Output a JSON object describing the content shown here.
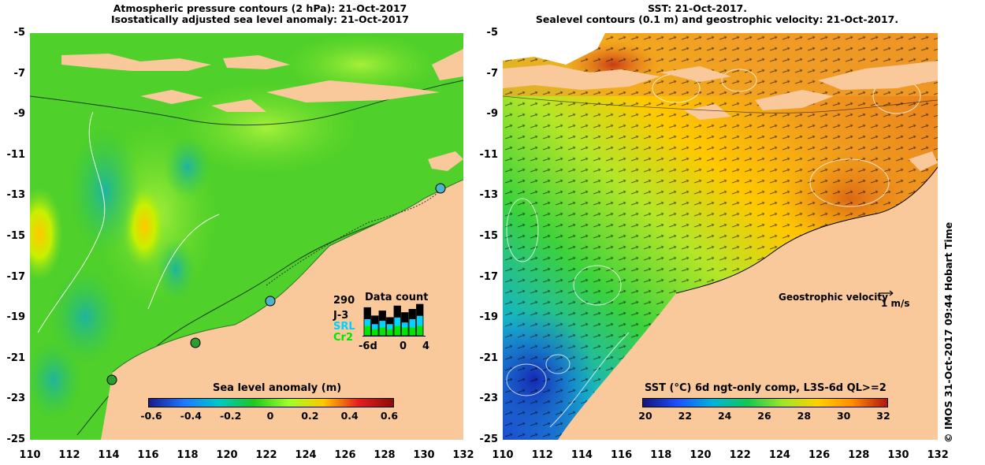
{
  "left_panel": {
    "title_line1": "Atmospheric pressure contours (2 hPa): 21-Oct-2017",
    "title_line2": "Isostatically adjusted sea level anomaly: 21-Oct-2017",
    "colorbar": {
      "title": "Sea level anomaly (m)",
      "ticks": [
        "-0.6",
        "-0.4",
        "-0.2",
        "0",
        "0.2",
        "0.4",
        "0.6"
      ],
      "colors": [
        "#1a1a8c",
        "#1e78ff",
        "#00c8c8",
        "#1ec81e",
        "#a0ff28",
        "#ffc800",
        "#e61e1e",
        "#8c0a0a"
      ]
    },
    "data_count": {
      "title": "Data count",
      "max": "290",
      "series_labels": [
        "J-3",
        "SRL",
        "Cr2"
      ],
      "series_colors": [
        "#000000",
        "#00d2ff",
        "#00e600"
      ],
      "x_ticks": [
        "-6d",
        "0",
        "4"
      ],
      "bars": [
        {
          "total": 0.85,
          "j3": 0.35,
          "srl": 0.2,
          "cr2": 0.3
        },
        {
          "total": 0.6,
          "j3": 0.25,
          "srl": 0.15,
          "cr2": 0.2
        },
        {
          "total": 0.75,
          "j3": 0.3,
          "srl": 0.2,
          "cr2": 0.25
        },
        {
          "total": 0.55,
          "j3": 0.2,
          "srl": 0.15,
          "cr2": 0.2
        },
        {
          "total": 0.9,
          "j3": 0.35,
          "srl": 0.25,
          "cr2": 0.3
        },
        {
          "total": 0.7,
          "j3": 0.3,
          "srl": 0.15,
          "cr2": 0.25
        },
        {
          "total": 0.8,
          "j3": 0.3,
          "srl": 0.25,
          "cr2": 0.25
        },
        {
          "total": 0.95,
          "j3": 0.35,
          "srl": 0.3,
          "cr2": 0.3
        }
      ]
    }
  },
  "right_panel": {
    "title_line1": "SST: 21-Oct-2017.",
    "title_line2": "Sealevel contours (0.1 m) and geostrophic velocity: 21-Oct-2017.",
    "velocity_label": "Geostrophic velocity",
    "velocity_scale": "1 m/s",
    "colorbar": {
      "title": "SST (°C) 6d ngt-only comp, L3S-6d QL>=2",
      "ticks": [
        "20",
        "22",
        "24",
        "26",
        "28",
        "30",
        "32"
      ],
      "colors": [
        "#14147a",
        "#1e50ff",
        "#00b4dc",
        "#14c850",
        "#9ee628",
        "#ffd200",
        "#ff8c00",
        "#b41414"
      ]
    }
  },
  "axes": {
    "y_ticks": [
      "-5",
      "-7",
      "-9",
      "-11",
      "-13",
      "-15",
      "-17",
      "-19",
      "-21",
      "-23",
      "-25"
    ],
    "x_ticks": [
      "110",
      "112",
      "114",
      "116",
      "118",
      "120",
      "122",
      "124",
      "126",
      "128",
      "130",
      "132"
    ]
  },
  "credit": "© IMOS 31-Oct-2017 09:44 Hobart Time",
  "colors": {
    "land": "#f9c99c",
    "ocean_green": "#4dd22a",
    "sst_orange": "#f0a028"
  }
}
